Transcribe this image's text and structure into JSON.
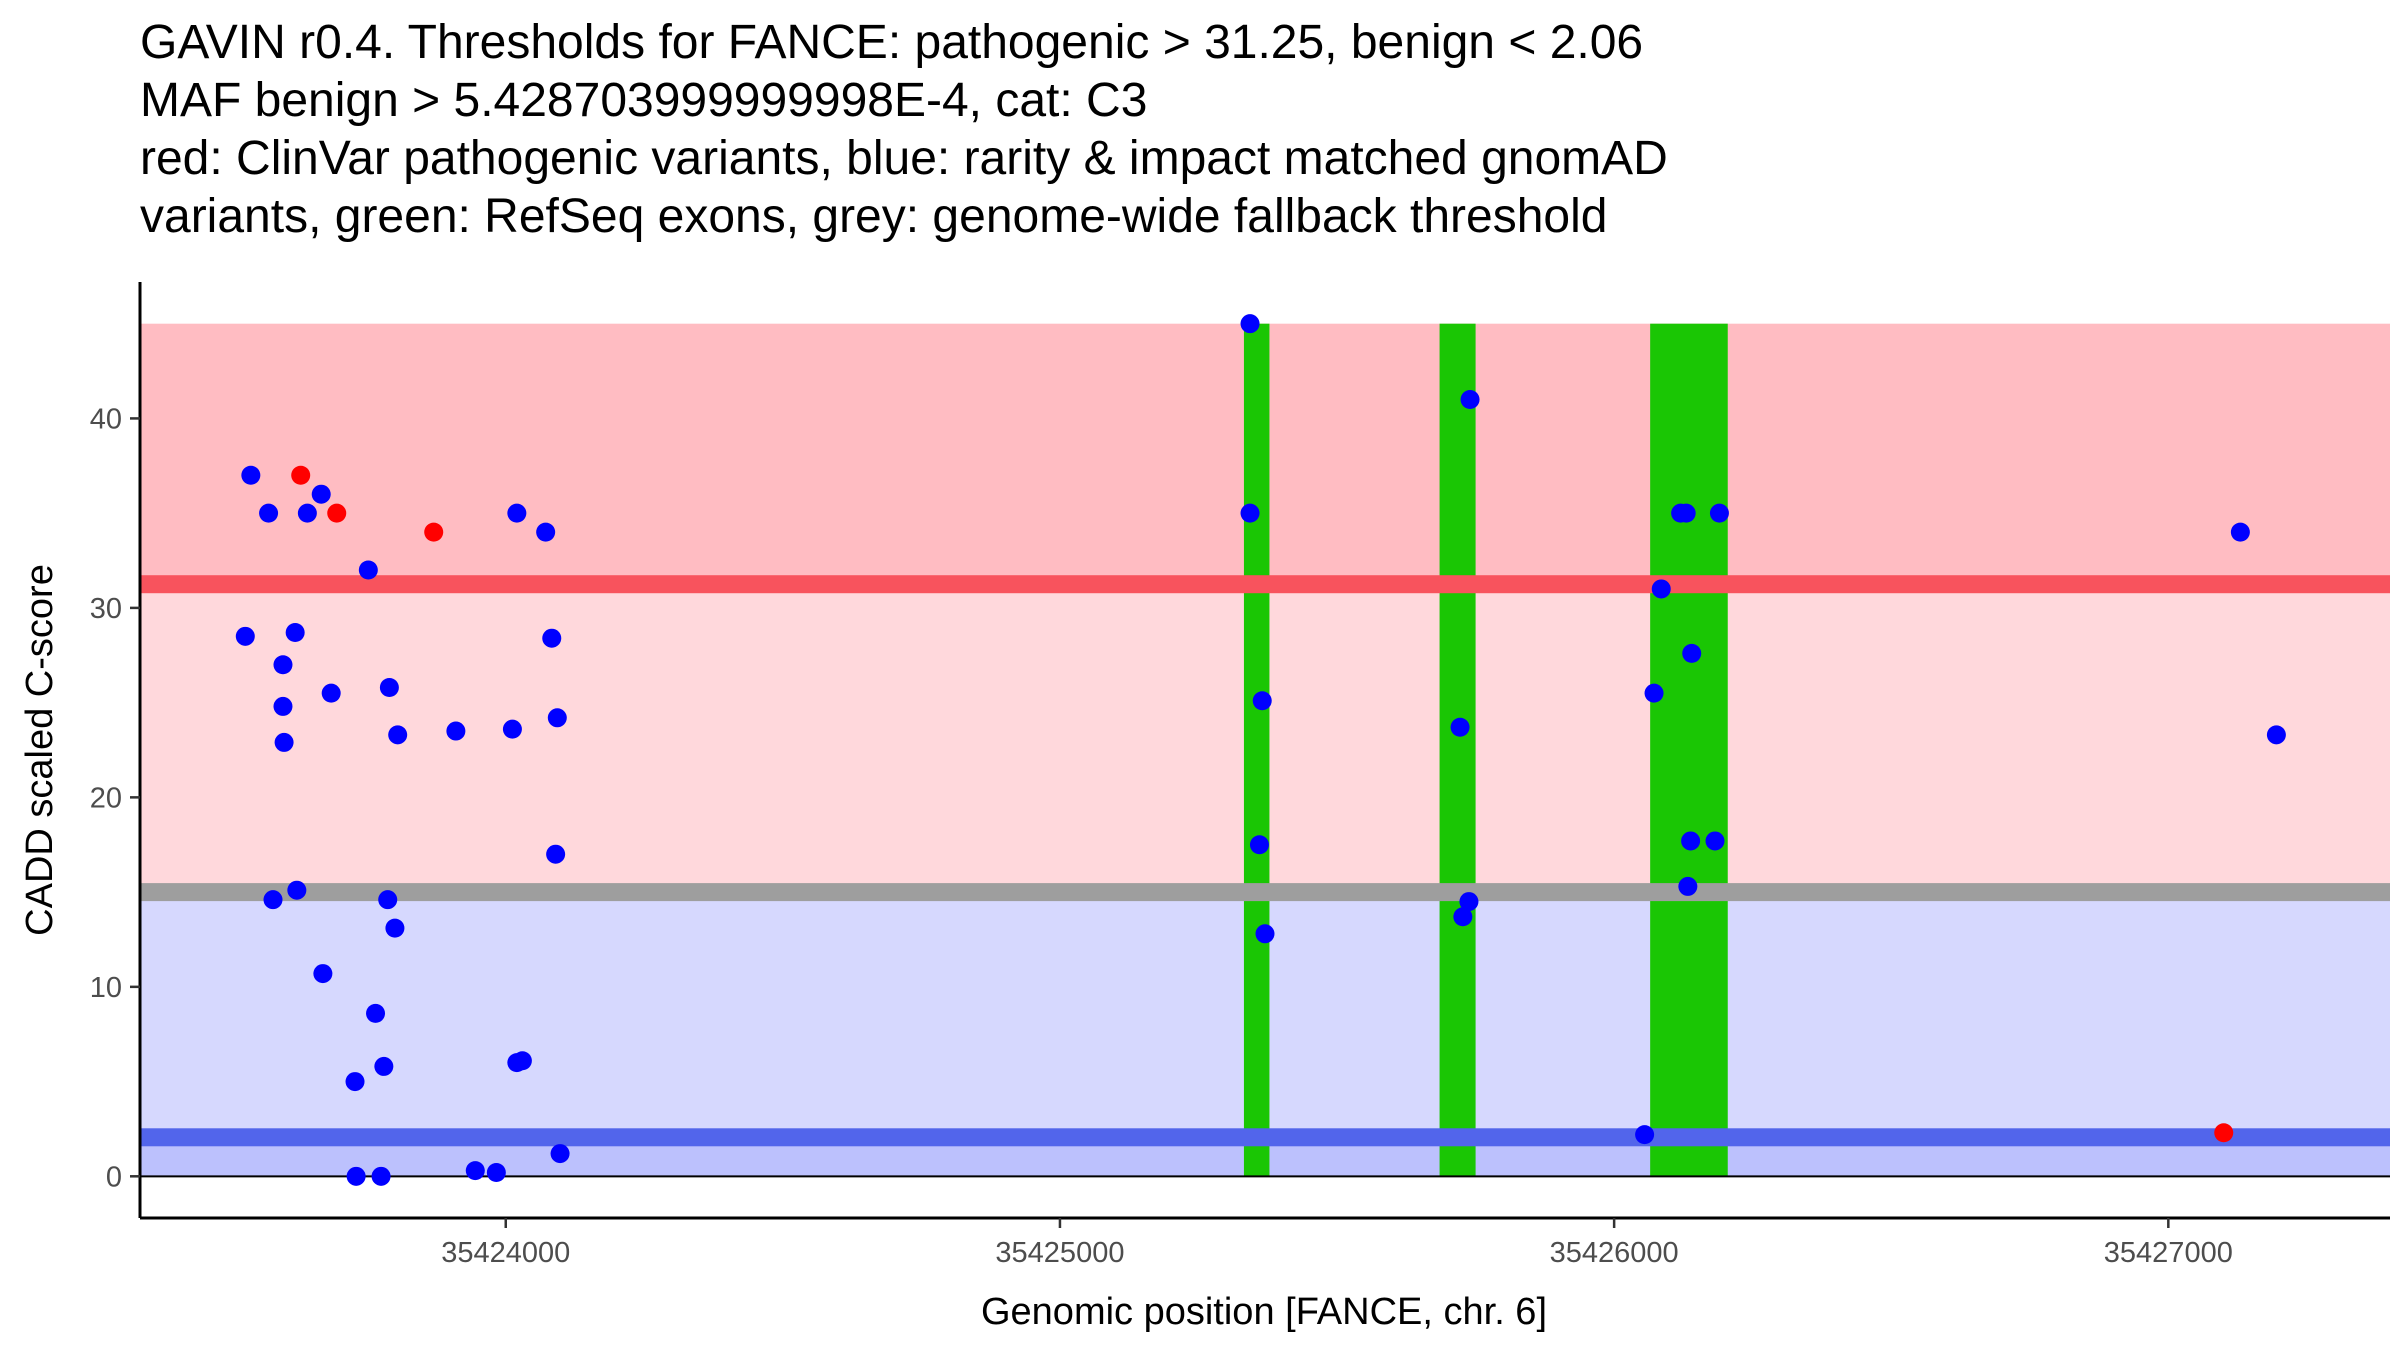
{
  "chart_data": {
    "type": "scatter",
    "title_lines": [
      "GAVIN r0.4. Thresholds for FANCE: pathogenic > 31.25, benign < 2.06",
      "MAF benign > 5.428703999999998E-4, cat: C3",
      "red: ClinVar pathogenic variants, blue: rarity & impact matched gnomAD",
      "variants, green: RefSeq exons, grey: genome-wide fallback threshold"
    ],
    "xlabel": "Genomic position [FANCE, chr. 6]",
    "ylabel": "CADD scaled C-score",
    "xlim": [
      35423340,
      35427400
    ],
    "ylim": [
      -2.2,
      47.2
    ],
    "x_ticks": [
      35424000,
      35425000,
      35426000,
      35427000
    ],
    "x_tick_labels": [
      "35424000",
      "35425000",
      "35426000",
      "35427000"
    ],
    "y_ticks": [
      0,
      10,
      20,
      30,
      40
    ],
    "y_tick_labels": [
      "0",
      "10",
      "20",
      "30",
      "40"
    ],
    "x_axis_line_at_y": 0,
    "bands": [
      {
        "name": "pathogenic-zone",
        "y0": 31.25,
        "y1": 45,
        "color": "#ffbcc2"
      },
      {
        "name": "gap-zone",
        "y0": 15,
        "y1": 31.25,
        "color": "#ffd8dc"
      },
      {
        "name": "benign-gap-zone",
        "y0": 2.06,
        "y1": 15,
        "color": "#d6d8fe"
      },
      {
        "name": "benign-zone",
        "y0": 0,
        "y1": 2.06,
        "color": "#bcc1fd"
      }
    ],
    "threshold_lines": [
      {
        "name": "pathogenic-threshold",
        "y": 31.25,
        "color": "#f8535d"
      },
      {
        "name": "fallback-threshold",
        "y": 15,
        "color": "#9e9e9e"
      },
      {
        "name": "benign-threshold",
        "y": 2.06,
        "color": "#5265eb"
      }
    ],
    "exons": [
      {
        "start": 35425332,
        "end": 35425378
      },
      {
        "start": 35425685,
        "end": 35425750
      },
      {
        "start": 35426065,
        "end": 35426205
      }
    ],
    "exon_color": "#1ac604",
    "series": [
      {
        "name": "ClinVar pathogenic variants",
        "color": "#ff0000",
        "points": [
          {
            "x": 35423630,
            "y": 37
          },
          {
            "x": 35423695,
            "y": 35
          },
          {
            "x": 35423870,
            "y": 34
          },
          {
            "x": 35427100,
            "y": 2.3
          }
        ]
      },
      {
        "name": "rarity & impact matched gnomAD variants",
        "color": "#0000ff",
        "points": [
          {
            "x": 35423540,
            "y": 37
          },
          {
            "x": 35423572,
            "y": 35
          },
          {
            "x": 35423642,
            "y": 35
          },
          {
            "x": 35423667,
            "y": 36
          },
          {
            "x": 35423752,
            "y": 32
          },
          {
            "x": 35424020,
            "y": 35
          },
          {
            "x": 35424072,
            "y": 34
          },
          {
            "x": 35423530,
            "y": 28.5
          },
          {
            "x": 35423620,
            "y": 28.7
          },
          {
            "x": 35423598,
            "y": 27
          },
          {
            "x": 35423685,
            "y": 25.5
          },
          {
            "x": 35423790,
            "y": 25.8
          },
          {
            "x": 35423598,
            "y": 24.8
          },
          {
            "x": 35423805,
            "y": 23.3
          },
          {
            "x": 35423600,
            "y": 22.9
          },
          {
            "x": 35423910,
            "y": 23.5
          },
          {
            "x": 35424012,
            "y": 23.6
          },
          {
            "x": 35424093,
            "y": 24.2
          },
          {
            "x": 35424083,
            "y": 28.4
          },
          {
            "x": 35424090,
            "y": 17
          },
          {
            "x": 35423580,
            "y": 14.6
          },
          {
            "x": 35423623,
            "y": 15.1
          },
          {
            "x": 35423787,
            "y": 14.6
          },
          {
            "x": 35423800,
            "y": 13.1
          },
          {
            "x": 35423670,
            "y": 10.7
          },
          {
            "x": 35423765,
            "y": 8.6
          },
          {
            "x": 35423780,
            "y": 5.8
          },
          {
            "x": 35423728,
            "y": 5
          },
          {
            "x": 35424020,
            "y": 6
          },
          {
            "x": 35424030,
            "y": 6.1
          },
          {
            "x": 35424098,
            "y": 1.2
          },
          {
            "x": 35423945,
            "y": 0.3
          },
          {
            "x": 35423983,
            "y": 0.2
          },
          {
            "x": 35423730,
            "y": 0
          },
          {
            "x": 35423775,
            "y": 0
          },
          {
            "x": 35425343,
            "y": 45
          },
          {
            "x": 35425343,
            "y": 35
          },
          {
            "x": 35425365,
            "y": 25.1
          },
          {
            "x": 35425360,
            "y": 17.5
          },
          {
            "x": 35425370,
            "y": 12.8
          },
          {
            "x": 35425740,
            "y": 41
          },
          {
            "x": 35425722,
            "y": 23.7
          },
          {
            "x": 35425738,
            "y": 14.5
          },
          {
            "x": 35425727,
            "y": 13.7
          },
          {
            "x": 35426120,
            "y": 35
          },
          {
            "x": 35426130,
            "y": 35
          },
          {
            "x": 35426190,
            "y": 35
          },
          {
            "x": 35426085,
            "y": 31
          },
          {
            "x": 35426140,
            "y": 27.6
          },
          {
            "x": 35426072,
            "y": 25.5
          },
          {
            "x": 35426138,
            "y": 17.7
          },
          {
            "x": 35426182,
            "y": 17.7
          },
          {
            "x": 35426133,
            "y": 15.3
          },
          {
            "x": 35426055,
            "y": 2.2
          },
          {
            "x": 35427130,
            "y": 34
          },
          {
            "x": 35427195,
            "y": 23.3
          }
        ]
      }
    ]
  }
}
